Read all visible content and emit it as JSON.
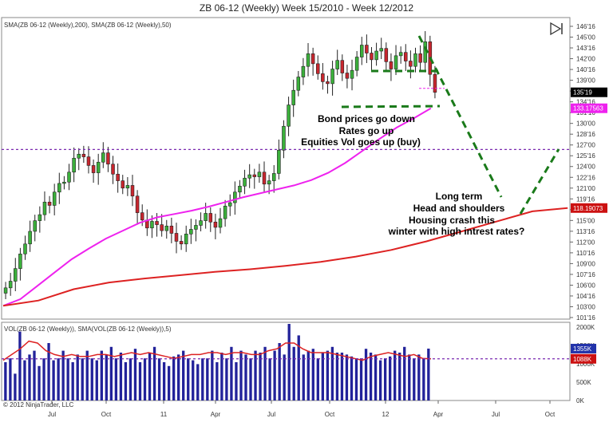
{
  "header": {
    "title": "ZB 06-12 (Weekly)  Week 15/2010 - Week 12/2012",
    "indicator_line": "SMA(ZB 06-12 (Weekly),200), SMA(ZB 06-12 (Weekly),50)",
    "vol_indicator_line": "VOL(ZB 06-12 (Weekly)), SMA(VOL(ZB 06-12 (Weekly)),5)",
    "copyright": "© 2012 NinjaTrader, LLC",
    "icon": "play-end-icon"
  },
  "colors": {
    "up_candle": "#3bb03b",
    "down_candle": "#c8262e",
    "sma50": "#ee22ee",
    "sma200": "#dd2222",
    "volume_bar": "#22229a",
    "vol_sma": "#dd2222",
    "annotation_dash": "#1a7a1a",
    "h_line": "#7a2ab0",
    "price_tag": "#000000",
    "sma50_tag": "#ee22ee",
    "sma200_tag": "#cc1111",
    "vol_tag_blue": "#2233aa",
    "vol_tag_red": "#cc1111"
  },
  "chart_data": [
    {
      "type": "candlestick",
      "title": "ZB 06-12 (Weekly)  Week 15/2010 - Week 12/2012",
      "ylim": [
        101.5,
        146.6
      ],
      "x_tick_labels": [
        "Jul",
        "Oct",
        "11",
        "Apr",
        "Jul",
        "Oct",
        "12",
        "Apr",
        "Jul",
        "Oct"
      ],
      "y_tick_labels": [
        "146'16",
        "145'00",
        "143'16",
        "142'00",
        "140'16",
        "139'00",
        "137'16",
        "134'16",
        "131'16",
        "130'00",
        "128'16",
        "127'00",
        "125'16",
        "124'00",
        "122'16",
        "121'00",
        "119'16",
        "116'16",
        "115'00",
        "113'16",
        "112'00",
        "110'16",
        "109'00",
        "107'16",
        "106'00",
        "104'16",
        "103'00",
        "101'16"
      ],
      "price_tag": "135'19",
      "sma50_tag": "133.17563",
      "sma200_tag": "118.19073",
      "close_series": [
        106.2,
        107.2,
        109.1,
        111.3,
        112.8,
        114.7,
        116.3,
        117.2,
        119.1,
        118.6,
        120.6,
        121.9,
        122.1,
        123.6,
        125.7,
        126.3,
        125.9,
        124.6,
        123.5,
        125.1,
        126.5,
        124.8,
        123.3,
        122.3,
        121.2,
        121.6,
        120.0,
        117.5,
        116.4,
        115.2,
        116.2,
        115.7,
        114.8,
        115.5,
        114.4,
        113.2,
        112.8,
        114.3,
        115.0,
        115.6,
        116.3,
        117.4,
        116.1,
        115.3,
        116.6,
        118.5,
        119.0,
        120.6,
        121.5,
        122.7,
        123.2,
        122.9,
        123.6,
        121.8,
        122.3,
        123.4,
        126.9,
        130.5,
        133.7,
        135.9,
        137.9,
        139.5,
        141.4,
        139.9,
        138.4,
        137.2,
        136.9,
        139.1,
        140.4,
        138.5,
        137.7,
        138.9,
        140.9,
        142.7,
        141.5,
        140.5,
        141.8,
        142.2,
        140.2,
        139.1,
        141.1,
        141.6,
        140.3,
        139.5,
        141.4,
        140.1,
        143.2,
        138.3,
        135.6
      ],
      "sma50_series": [
        103.5,
        104.5,
        106.5,
        108.5,
        110.5,
        112.1,
        113.6,
        114.8,
        116.0,
        116.8,
        117.3,
        117.8,
        118.4,
        119.1,
        119.8,
        120.4,
        121.0,
        121.6,
        122.4,
        123.5,
        125.0,
        126.8,
        128.6,
        130.3,
        131.7,
        133.2
      ],
      "sma200_series": [
        103.5,
        104.3,
        106.0,
        107.0,
        107.6,
        108.1,
        108.6,
        109.0,
        109.5,
        110.1,
        110.9,
        111.9,
        113.2,
        114.7,
        116.2,
        117.7,
        118.2
      ],
      "annotations": [
        "Bond prices go down",
        "Rates go up",
        "Equities Vol goes up (buy)",
        "Long term",
        "Head and shoulders",
        "Housing crash this",
        "winter with high intrest rates?"
      ],
      "h_line_value": 127.0
    },
    {
      "type": "bar",
      "title": "VOL(ZB 06-12 (Weekly)), SMA(VOL(ZB 06-12 (Weekly)),5)",
      "ylim": [
        0,
        2000
      ],
      "y_tick_labels": [
        "2000K",
        "1500K",
        "1000K",
        "500K",
        "0K"
      ],
      "vol_tag_1": "1355K",
      "vol_tag_2": "1088K",
      "values": [
        1000,
        1100,
        700,
        1800,
        1050,
        1200,
        1300,
        900,
        1100,
        1500,
        1050,
        1100,
        1300,
        1100,
        1000,
        1200,
        1100,
        1300,
        1100,
        1050,
        1300,
        1200,
        1400,
        1100,
        1250,
        1000,
        1100,
        1350,
        1000,
        1100,
        1250,
        1400,
        1100,
        1000,
        900,
        1150,
        1200,
        1300,
        1100,
        1050,
        950,
        1100,
        1100,
        1300,
        1000,
        1250,
        1100,
        1400,
        1000,
        1300,
        1200,
        1100,
        1300,
        1250,
        1400,
        1100,
        1300,
        1500,
        1200,
        2000,
        1400,
        1700,
        1200,
        1300,
        1350,
        1100,
        1250,
        1300,
        1400,
        1250,
        1250,
        1200,
        1150,
        1100,
        1100,
        1350,
        1250,
        1200,
        1050,
        1100,
        1150,
        1300,
        1250,
        1400,
        1200,
        1100,
        1200,
        1100,
        1355
      ],
      "sma_values": [
        1050,
        1200,
        1350,
        1550,
        1500,
        1300,
        1200,
        1150,
        1200,
        1150,
        1150,
        1200,
        1200,
        1150,
        1200,
        1250,
        1200,
        1250,
        1200,
        1150,
        1100,
        1150,
        1200,
        1200,
        1250,
        1250,
        1200,
        1250,
        1250,
        1200,
        1200,
        1300,
        1350,
        1500,
        1500,
        1350,
        1250,
        1250,
        1250,
        1200,
        1150,
        1100,
        1050,
        1150,
        1200,
        1250,
        1200,
        1150,
        1200,
        1100,
        1088
      ]
    }
  ]
}
